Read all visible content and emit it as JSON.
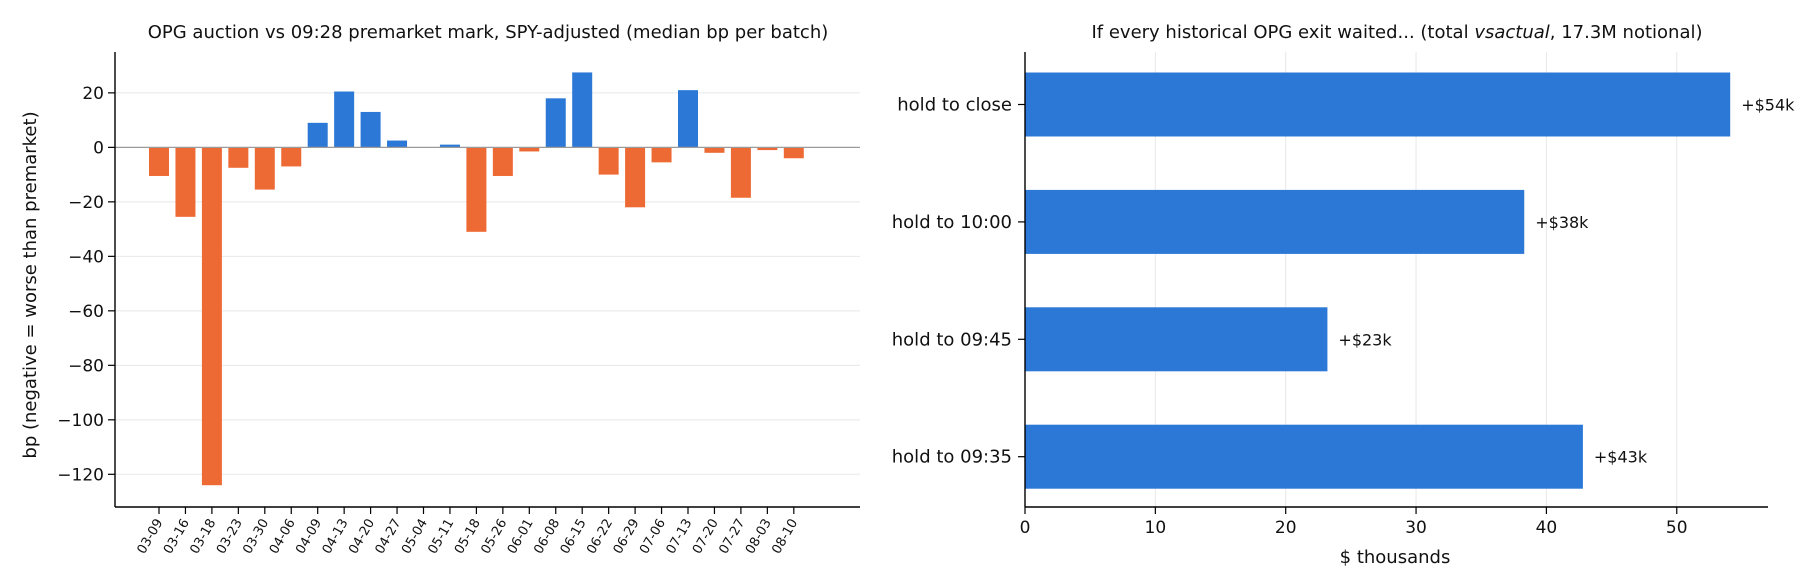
{
  "colors": {
    "positive": "#2b78d6",
    "negative": "#ee6a35",
    "grid": "#e8e8e8",
    "zero_line": "#9a9a9a",
    "axis": "#000000"
  },
  "chart_data": [
    {
      "type": "bar",
      "title": "OPG auction vs 09:28 premarket mark, SPY-adjusted (median bp per batch)",
      "xlabel": "",
      "ylabel": "bp (negative = worse than premarket)",
      "ylim": [
        -132,
        35
      ],
      "yticks": [
        20,
        0,
        -20,
        -40,
        -60,
        -80,
        -100,
        -120
      ],
      "ytick_labels": [
        "20",
        "0",
        "−20",
        "−40",
        "−60",
        "−80",
        "−100",
        "−120"
      ],
      "grid": "horizontal",
      "categories": [
        "03-09",
        "03-16",
        "03-18",
        "03-23",
        "03-30",
        "04-06",
        "04-09",
        "04-13",
        "04-20",
        "04-27",
        "05-04",
        "05-11",
        "05-18",
        "05-26",
        "06-01",
        "06-08",
        "06-15",
        "06-22",
        "06-29",
        "07-06",
        "07-13",
        "07-20",
        "07-27",
        "08-03",
        "08-10"
      ],
      "values": [
        -10.5,
        -25.5,
        -124,
        -7.5,
        -15.5,
        -7,
        9,
        20.5,
        13,
        2.5,
        0,
        1,
        -31,
        -10.5,
        -1.5,
        18,
        27.5,
        -10,
        -22,
        -5.5,
        21,
        -2,
        -18.5,
        -1,
        -4
      ]
    },
    {
      "type": "bar",
      "orientation": "horizontal",
      "title_parts": {
        "before": "If every historical OPG exit waited... (total ",
        "italic": "vsactual",
        "after": ", 17.3M notional)"
      },
      "xlabel": "$ thousands",
      "ylabel": "",
      "xlim": [
        0,
        57
      ],
      "xticks": [
        0,
        10,
        20,
        30,
        40,
        50
      ],
      "xtick_labels": [
        "0",
        "10",
        "20",
        "30",
        "40",
        "50"
      ],
      "grid": "vertical",
      "categories": [
        "hold to close",
        "hold to 10:00",
        "hold to 09:45",
        "hold to 09:35"
      ],
      "values": [
        54.1,
        38.3,
        23.2,
        42.8
      ],
      "data_labels": [
        "+$54k",
        "+$38k",
        "+$23k",
        "+$43k"
      ]
    }
  ]
}
